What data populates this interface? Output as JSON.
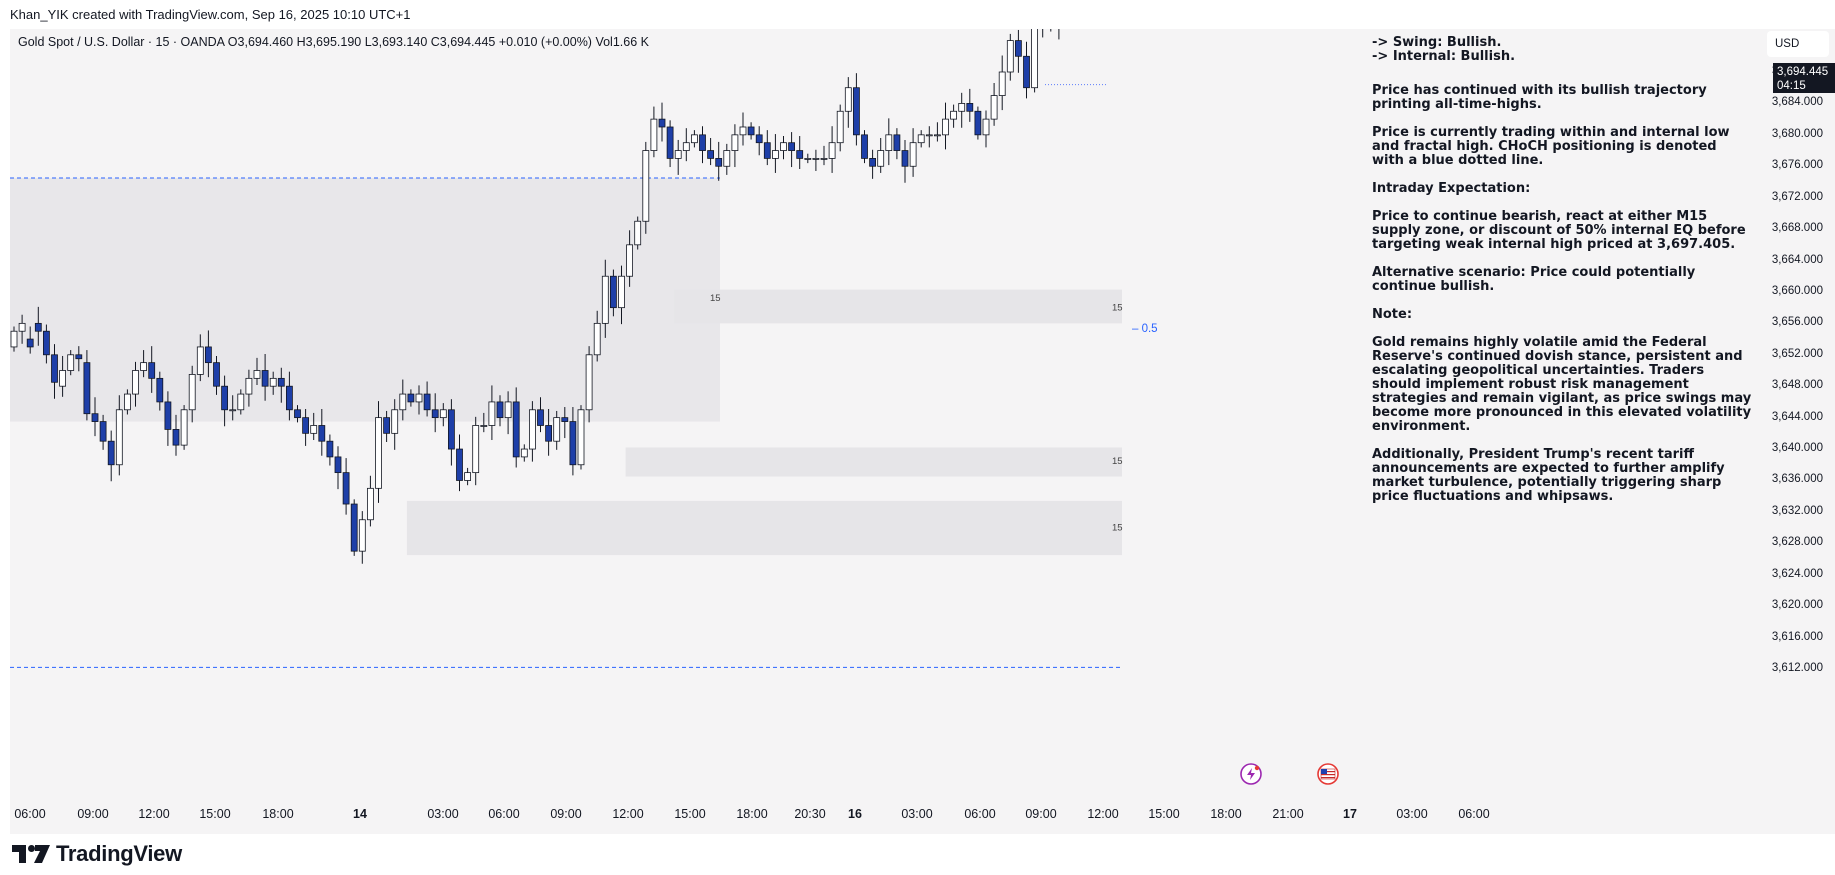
{
  "header": {
    "attribution": "Khan_YIK created with TradingView.com, Sep 16, 2025 10:10 UTC+1"
  },
  "legend": {
    "text": "Gold Spot / U.S. Dollar · 15 · OANDA  O3,694.460  H3,695.190  L3,693.140  C3,694.445  +0.010 (+0.00%)  Vol1.66 K"
  },
  "price_axis": {
    "currency": "USD",
    "last_price": "3,694.445",
    "countdown": "04:15",
    "ticks": [
      "3,612.000",
      "3,616.000",
      "3,620.000",
      "3,624.000",
      "3,628.000",
      "3,632.000",
      "3,636.000",
      "3,640.000",
      "3,644.000",
      "3,648.000",
      "3,652.000",
      "3,656.000",
      "3,660.000",
      "3,664.000",
      "3,668.000",
      "3,672.000",
      "3,676.000",
      "3,680.000",
      "3,684.000",
      "3,688.000"
    ]
  },
  "annotations": {
    "eq_label": "0.5",
    "zone_labels": [
      "15",
      "15",
      "15",
      "15"
    ]
  },
  "notes": {
    "swing": "-> Swing: Bullish.",
    "internal": "-> Internal: Bullish.",
    "p1": "Price has continued with its bullish trajectory printing all-time-highs.",
    "p2": "Price is currently trading within and internal low and fractal high.  CHoCH positioning is denoted with a blue dotted line.",
    "p3": "Intraday Expectation:",
    "p4": "Price to continue bearish, react at either  M15 supply zone, or discount of 50% internal EQ before targeting weak internal high priced at 3,697.405.",
    "p5": "Alternative scenario: Price could potentially continue bullish.",
    "p6": "Note:",
    "p7": "Gold remains highly volatile amid the Federal Reserve's continued dovish stance, persistent and escalating geopolitical uncertainties. Traders should implement robust risk management strategies and remain vigilant, as price swings may become more pronounced in this elevated volatility environment.",
    "p8": "Additionally, President Trump's recent tariff announcements are expected to further amplify market turbulence, potentially triggering sharp price fluctuations and whipsaws."
  },
  "footer": {
    "brand": "TradingView"
  },
  "chart_data": {
    "type": "candlestick",
    "symbol": "Gold Spot / U.S. Dollar",
    "interval": "15",
    "exchange": "OANDA",
    "ylim": [
      3610,
      3700
    ],
    "x_ticks": [
      "06:00",
      "09:00",
      "12:00",
      "15:00",
      "18:00",
      "14",
      "03:00",
      "06:00",
      "09:00",
      "12:00",
      "15:00",
      "18:00",
      "20:30",
      "16",
      "03:00",
      "06:00",
      "09:00",
      "12:00",
      "15:00",
      "18:00",
      "21:00",
      "17",
      "03:00",
      "06:00"
    ],
    "bold_x_ticks": [
      "14",
      "16",
      "17"
    ],
    "ohlc": {
      "open": [
        3653.0,
        3655.0,
        3654.0,
        3656.0,
        3655.0,
        3652.0,
        3648.0,
        3650.0,
        3652.0,
        3651.0,
        3644.5,
        3643.5,
        3641.0,
        3638.0,
        3645.0,
        3647.0,
        3650.0,
        3651.0,
        3649.0,
        3646.0,
        3642.5,
        3640.5,
        3645.0,
        3649.5,
        3653.0,
        3651.0,
        3648.0,
        3645.0,
        3645.0,
        3647.0,
        3649.0,
        3650.0,
        3648.0,
        3649.0,
        3648.0,
        3645.0,
        3644.0,
        3642.0,
        3643.0,
        3641.0,
        3639.0,
        3637.0,
        3633.0,
        3627.0,
        3631.0,
        3635.0,
        3644.0,
        3642.0,
        3645.0,
        3647.0,
        3646.0,
        3647.0,
        3645.0,
        3644.0,
        3645.0,
        3640.0,
        3636.0,
        3637.0,
        3643.0,
        3643.0,
        3646.0,
        3644.0,
        3646.0,
        3639.0,
        3640.0,
        3645.0,
        3643.0,
        3641.0,
        3644.0,
        3643.5,
        3638.0,
        3645.0,
        3652.0,
        3656.0,
        3662.0,
        3658.0,
        3662.0,
        3666.0,
        3669.0,
        3678.0,
        3682.0,
        3681.0,
        3677.0,
        3678.0,
        3679.0,
        3680.0,
        3678.0,
        3677.0,
        3676.0,
        3678.0,
        3680.0,
        3681.0,
        3680.0,
        3679.0,
        3677.0,
        3678.0,
        3679.0,
        3678.0,
        3677.0,
        3677.0,
        3677.0,
        3677.0,
        3679.0,
        3683.0,
        3686.0,
        3680.0,
        3677.0,
        3676.0,
        3678.0,
        3680.0,
        3678.0,
        3676.0,
        3679.0,
        3680.0,
        3680.0,
        3680.0,
        3682.0,
        3683.0,
        3684.0,
        3683.0,
        3680.0,
        3682.0,
        3685.0,
        3688.0,
        3692.0,
        3690.0,
        3686.0,
        3694.0,
        3694.0,
        3694.0
      ],
      "close": [
        3655.0,
        3656.0,
        3653.0,
        3655.0,
        3652.0,
        3648.5,
        3650.0,
        3652.0,
        3651.5,
        3644.5,
        3643.5,
        3641.0,
        3638.0,
        3645.0,
        3647.0,
        3650.0,
        3651.0,
        3649.0,
        3646.0,
        3642.5,
        3640.5,
        3645.0,
        3649.5,
        3653.0,
        3651.0,
        3648.0,
        3645.0,
        3645.0,
        3647.0,
        3649.0,
        3650.0,
        3648.0,
        3649.0,
        3648.0,
        3645.0,
        3644.0,
        3642.0,
        3643.0,
        3641.0,
        3639.0,
        3637.0,
        3633.0,
        3627.0,
        3631.0,
        3635.0,
        3644.0,
        3642.0,
        3645.0,
        3647.0,
        3646.0,
        3647.0,
        3645.0,
        3644.0,
        3645.0,
        3640.0,
        3636.0,
        3637.0,
        3643.0,
        3643.0,
        3646.0,
        3644.0,
        3646.0,
        3639.0,
        3640.0,
        3645.0,
        3643.0,
        3641.0,
        3644.0,
        3643.5,
        3638.0,
        3645.0,
        3652.0,
        3656.0,
        3662.0,
        3658.0,
        3662.0,
        3666.0,
        3669.0,
        3678.0,
        3682.0,
        3681.0,
        3677.0,
        3678.0,
        3679.0,
        3680.0,
        3678.0,
        3677.0,
        3676.0,
        3678.0,
        3680.0,
        3681.0,
        3680.0,
        3679.0,
        3677.0,
        3678.0,
        3679.0,
        3678.0,
        3677.0,
        3677.0,
        3677.0,
        3677.0,
        3679.0,
        3683.0,
        3686.0,
        3680.0,
        3677.0,
        3676.0,
        3678.0,
        3680.0,
        3678.0,
        3676.0,
        3679.0,
        3680.0,
        3680.0,
        3680.0,
        3682.0,
        3683.0,
        3684.0,
        3683.0,
        3680.0,
        3682.0,
        3685.0,
        3688.0,
        3692.0,
        3690.0,
        3686.0,
        3694.0,
        3694.0,
        3694.0,
        3694.4
      ]
    },
    "levels": [
      {
        "label": "blue dashed upper",
        "price": 3674.5
      },
      {
        "label": "blue dashed lower",
        "price": 3612.2
      },
      {
        "label": "last price dotted",
        "price": 3694.445
      }
    ],
    "zones": [
      {
        "from_index": 0,
        "to_index": 82,
        "low": 3643.5,
        "high": 3674.5
      },
      {
        "from_index": 82,
        "to_index": 130,
        "low": 3656.0,
        "high": 3660.3
      },
      {
        "from_index": 76,
        "to_index": 130,
        "low": 3636.5,
        "high": 3640.2
      },
      {
        "from_index": 49,
        "to_index": 130,
        "low": 3626.5,
        "high": 3633.4
      }
    ]
  }
}
